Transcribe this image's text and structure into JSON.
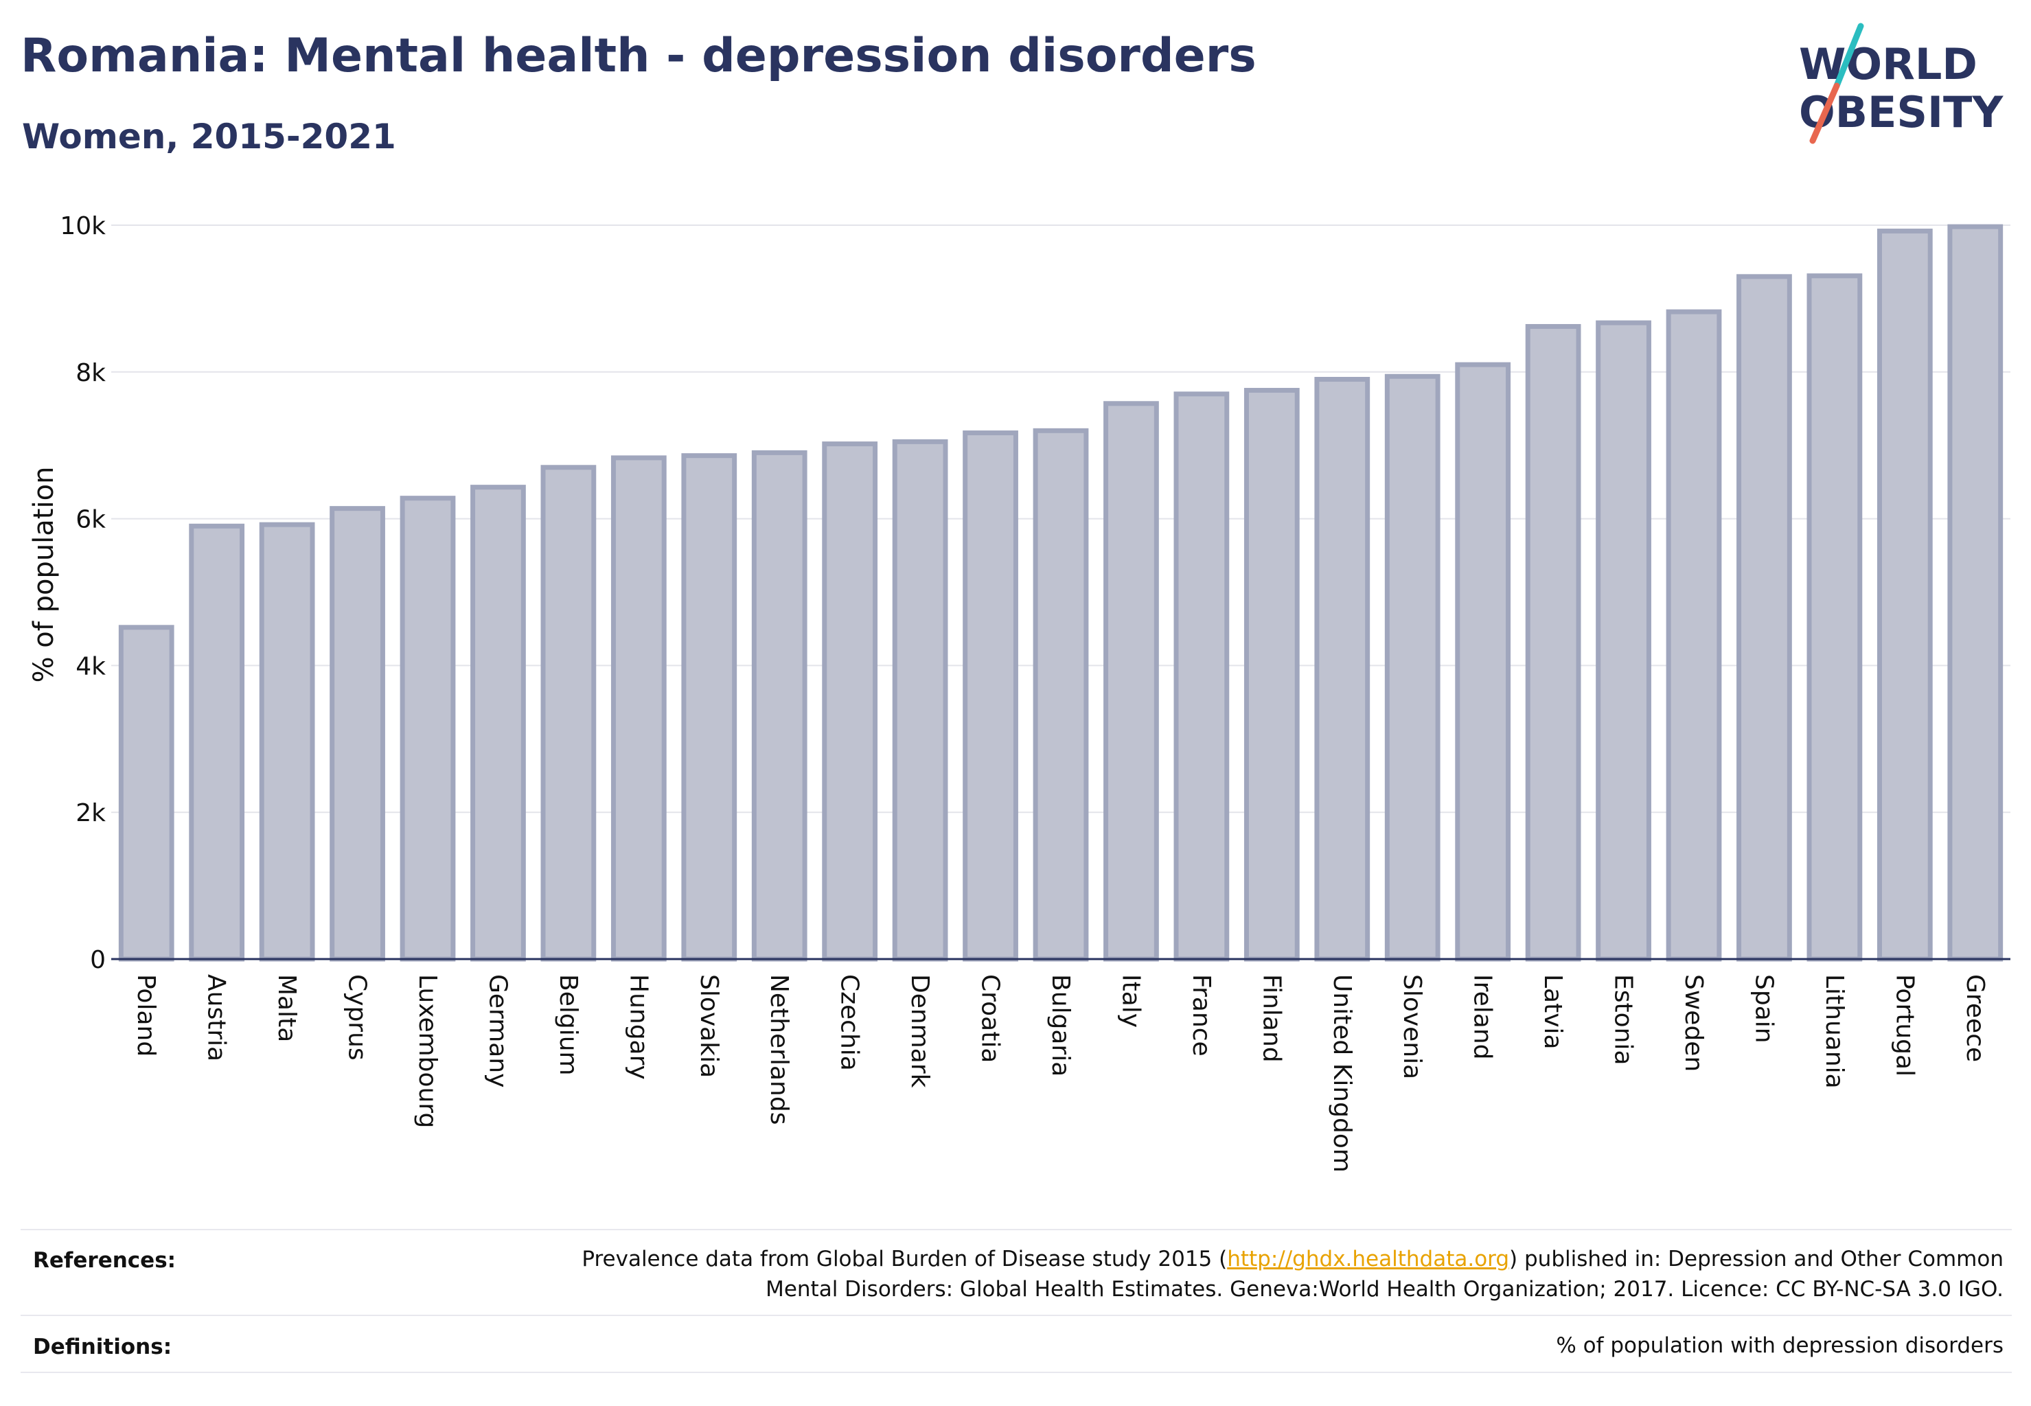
{
  "header": {
    "title": "Romania: Mental health - depression disorders",
    "subtitle": "Women, 2015-2021"
  },
  "logo": {
    "line1": "WORLD",
    "line2": "OBESITY",
    "text_color": "#2a3460",
    "slash_colors": [
      "#2bbdc0",
      "#e8674f"
    ]
  },
  "chart_data": {
    "type": "bar",
    "categories": [
      "Poland",
      "Austria",
      "Malta",
      "Cyprus",
      "Luxembourg",
      "Germany",
      "Belgium",
      "Hungary",
      "Slovakia",
      "Netherlands",
      "Czechia",
      "Denmark",
      "Croatia",
      "Bulgaria",
      "Italy",
      "France",
      "Finland",
      "United Kingdom",
      "Slovenia",
      "Ireland",
      "Latvia",
      "Estonia",
      "Sweden",
      "Spain",
      "Lithuania",
      "Portugal",
      "Greece"
    ],
    "values": [
      4520,
      5900,
      5920,
      6140,
      6280,
      6430,
      6700,
      6830,
      6860,
      6900,
      7020,
      7050,
      7170,
      7200,
      7570,
      7700,
      7750,
      7900,
      7940,
      8100,
      8620,
      8670,
      8820,
      9300,
      9310,
      9920,
      9980
    ],
    "ylabel": "% of population",
    "xlabel": "",
    "ylim": [
      0,
      10000
    ],
    "yticks": [
      0,
      2000,
      4000,
      6000,
      8000,
      10000
    ],
    "ytick_labels": [
      "0",
      "2k",
      "4k",
      "6k",
      "8k",
      "10k"
    ],
    "grid": true,
    "bar_fill": "#bfc2d0",
    "bar_stroke": "#a0a6bd"
  },
  "footer": {
    "references_label": "References:",
    "references_line1_pre": "Prevalence data from Global Burden of Disease study 2015 (",
    "references_link": "http://ghdx.healthdata.org",
    "references_line1_post": ") published in: Depression and Other Common",
    "references_line2": "Mental Disorders: Global Health Estimates. Geneva:World Health Organization; 2017. Licence: CC BY-NC-SA 3.0 IGO.",
    "definitions_label": "Definitions:",
    "definitions_text": "% of population with depression disorders"
  }
}
